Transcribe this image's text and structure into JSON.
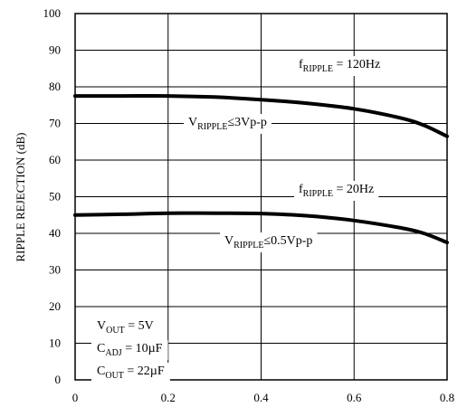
{
  "chart_data": {
    "type": "line",
    "xlabel": "",
    "ylabel": "RIPPLE REJECTION (dB)",
    "xlim": [
      0,
      0.8
    ],
    "ylim": [
      0,
      100
    ],
    "x_ticks": [
      "0",
      "0.2",
      "0.4",
      "0.6",
      "0.8"
    ],
    "y_ticks": [
      "0",
      "10",
      "20",
      "30",
      "40",
      "50",
      "60",
      "70",
      "80",
      "90",
      "100"
    ],
    "grid": true,
    "series": [
      {
        "x": [
          0,
          0.1,
          0.2,
          0.3,
          0.4,
          0.5,
          0.6,
          0.7,
          0.75,
          0.8
        ],
        "values": [
          77.5,
          77.5,
          77.5,
          77.2,
          76.5,
          75.5,
          74.0,
          71.5,
          69.5,
          66.5
        ]
      },
      {
        "x": [
          0,
          0.1,
          0.2,
          0.3,
          0.4,
          0.5,
          0.6,
          0.7,
          0.75,
          0.8
        ],
        "values": [
          45.0,
          45.2,
          45.5,
          45.5,
          45.4,
          44.8,
          43.5,
          41.5,
          40.0,
          37.5
        ]
      }
    ],
    "annotations": [
      {
        "main": "f",
        "sub": "RIPPLE",
        "rest": " = 120Hz"
      },
      {
        "main": "V",
        "sub": "RIPPLE",
        "rest": "≤3Vp-p"
      },
      {
        "main": "f",
        "sub": "RIPPLE",
        "rest": " = 20Hz"
      },
      {
        "main": "V",
        "sub": "RIPPLE",
        "rest": "≤0.5Vp-p"
      }
    ],
    "conditions": [
      {
        "main": "V",
        "sub": "OUT",
        "rest": " = 5V"
      },
      {
        "main": "C",
        "sub": "ADJ",
        "rest": " = 10µF"
      },
      {
        "main": "C",
        "sub": "OUT",
        "rest": " = 22µF"
      }
    ]
  }
}
